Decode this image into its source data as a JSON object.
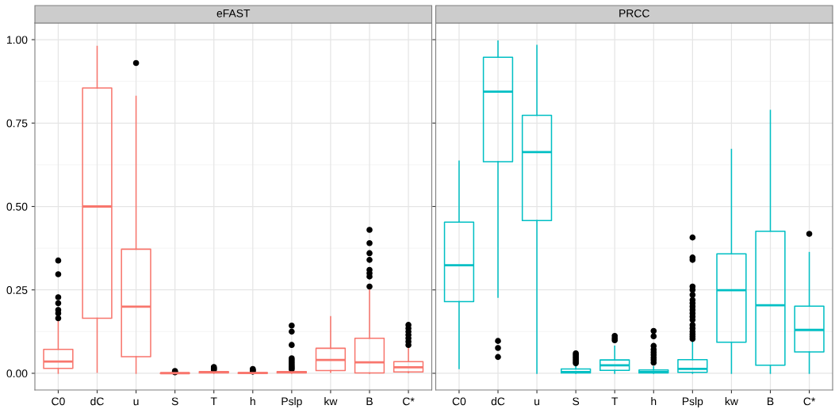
{
  "chart_data": [
    {
      "type": "box",
      "title": "eFAST",
      "categories": [
        "C0",
        "dC",
        "u",
        "S",
        "T",
        "h",
        "Pslp",
        "kw",
        "B",
        "C*"
      ],
      "ylim": [
        -0.05,
        1.05
      ],
      "yticks": [
        {
          "value": 0,
          "label": "0.00"
        },
        {
          "value": 0.25,
          "label": "0.25"
        },
        {
          "value": 0.5,
          "label": "0.50"
        },
        {
          "value": 0.75,
          "label": "0.75"
        },
        {
          "value": 1,
          "label": "1.00"
        }
      ],
      "grid": true,
      "series": [
        {
          "color": "#f8766d",
          "boxes": [
            {
              "low": 0,
              "q1": 0.015,
              "median": 0.035,
              "q3": 0.072,
              "high": 0.155,
              "outliers": [
                0.165,
                0.18,
                0.19,
                0.21,
                0.228,
                0.297,
                0.338
              ]
            },
            {
              "low": 0.003,
              "q1": 0.165,
              "median": 0.5,
              "q3": 0.855,
              "high": 0.98
            },
            {
              "low": 0,
              "q1": 0.05,
              "median": 0.2,
              "q3": 0.372,
              "high": 0.83,
              "outliers": [
                0.93
              ]
            },
            {
              "low": 0,
              "q1": 0,
              "median": 0.0005,
              "q3": 0.001,
              "high": 0.002,
              "outliers": [
                0.003,
                0.005,
                0.007
              ]
            },
            {
              "low": 0,
              "q1": 0.001,
              "median": 0.003,
              "q3": 0.005,
              "high": 0.008,
              "outliers": [
                0.01,
                0.013,
                0.016,
                0.019
              ]
            },
            {
              "low": 0,
              "q1": 0,
              "median": 0.001,
              "q3": 0.002,
              "high": 0.003,
              "outliers": [
                0.005,
                0.008,
                0.01,
                0.013
              ]
            },
            {
              "low": 0,
              "q1": 0.001,
              "median": 0.003,
              "q3": 0.005,
              "high": 0.009,
              "outliers": [
                0.012,
                0.016,
                0.02,
                0.025,
                0.03,
                0.035,
                0.04,
                0.045,
                0.085,
                0.125,
                0.143
              ]
            },
            {
              "low": 0.003,
              "q1": 0.008,
              "median": 0.04,
              "q3": 0.075,
              "high": 0.17
            },
            {
              "low": 0,
              "q1": 0.001,
              "median": 0.033,
              "q3": 0.105,
              "high": 0.25,
              "outliers": [
                0.26,
                0.29,
                0.3,
                0.31,
                0.34,
                0.36,
                0.39,
                0.43
              ]
            },
            {
              "low": 0.002,
              "q1": 0.004,
              "median": 0.018,
              "q3": 0.035,
              "high": 0.08,
              "outliers": [
                0.085,
                0.095,
                0.105,
                0.115,
                0.125,
                0.135,
                0.145
              ]
            }
          ]
        }
      ]
    },
    {
      "type": "box",
      "title": "PRCC",
      "categories": [
        "C0",
        "dC",
        "u",
        "S",
        "T",
        "h",
        "Pslp",
        "kw",
        "B",
        "C*"
      ],
      "ylim": [
        -0.05,
        1.05
      ],
      "yticks": [
        {
          "value": 0,
          "label": null
        },
        {
          "value": 0.25,
          "label": null
        },
        {
          "value": 0.5,
          "label": null
        },
        {
          "value": 0.75,
          "label": null
        },
        {
          "value": 1,
          "label": null
        }
      ],
      "grid": true,
      "tick_labels": "x",
      "series": [
        {
          "color": "#00bfc4",
          "boxes": [
            {
              "low": 0.014,
              "q1": 0.215,
              "median": 0.324,
              "q3": 0.453,
              "high": 0.636
            },
            {
              "low": 0.228,
              "q1": 0.634,
              "median": 0.844,
              "q3": 0.947,
              "high": 0.996,
              "outliers": [
                0.049,
                0.076,
                0.097
              ]
            },
            {
              "low": 0,
              "q1": 0.458,
              "median": 0.663,
              "q3": 0.773,
              "high": 0.983
            },
            {
              "low": 0,
              "q1": 0.001,
              "median": 0.004,
              "q3": 0.013,
              "high": 0.025,
              "outliers": [
                0.03,
                0.035,
                0.04,
                0.045,
                0.05,
                0.055,
                0.06
              ]
            },
            {
              "low": 0,
              "q1": 0.009,
              "median": 0.024,
              "q3": 0.04,
              "high": 0.081,
              "outliers": [
                0.099,
                0.105,
                0.112
              ]
            },
            {
              "low": 0,
              "q1": 0.001,
              "median": 0.004,
              "q3": 0.01,
              "high": 0.02,
              "outliers": [
                0.032,
                0.04,
                0.047,
                0.055,
                0.063,
                0.071,
                0.082,
                0.111,
                0.127
              ]
            },
            {
              "low": 0,
              "q1": 0.003,
              "median": 0.013,
              "q3": 0.041,
              "high": 0.093,
              "outliers": [
                0.103,
                0.11,
                0.117,
                0.125,
                0.135,
                0.145,
                0.16,
                0.17,
                0.18,
                0.19,
                0.2,
                0.21,
                0.22,
                0.235,
                0.25,
                0.26,
                0.34,
                0.347,
                0.407
              ]
            },
            {
              "low": 0,
              "q1": 0.093,
              "median": 0.249,
              "q3": 0.358,
              "high": 0.671
            },
            {
              "low": 0,
              "q1": 0.024,
              "median": 0.204,
              "q3": 0.426,
              "high": 0.788
            },
            {
              "low": 0,
              "q1": 0.064,
              "median": 0.13,
              "q3": 0.201,
              "high": 0.362,
              "outliers": [
                0.418
              ]
            }
          ]
        }
      ]
    }
  ]
}
